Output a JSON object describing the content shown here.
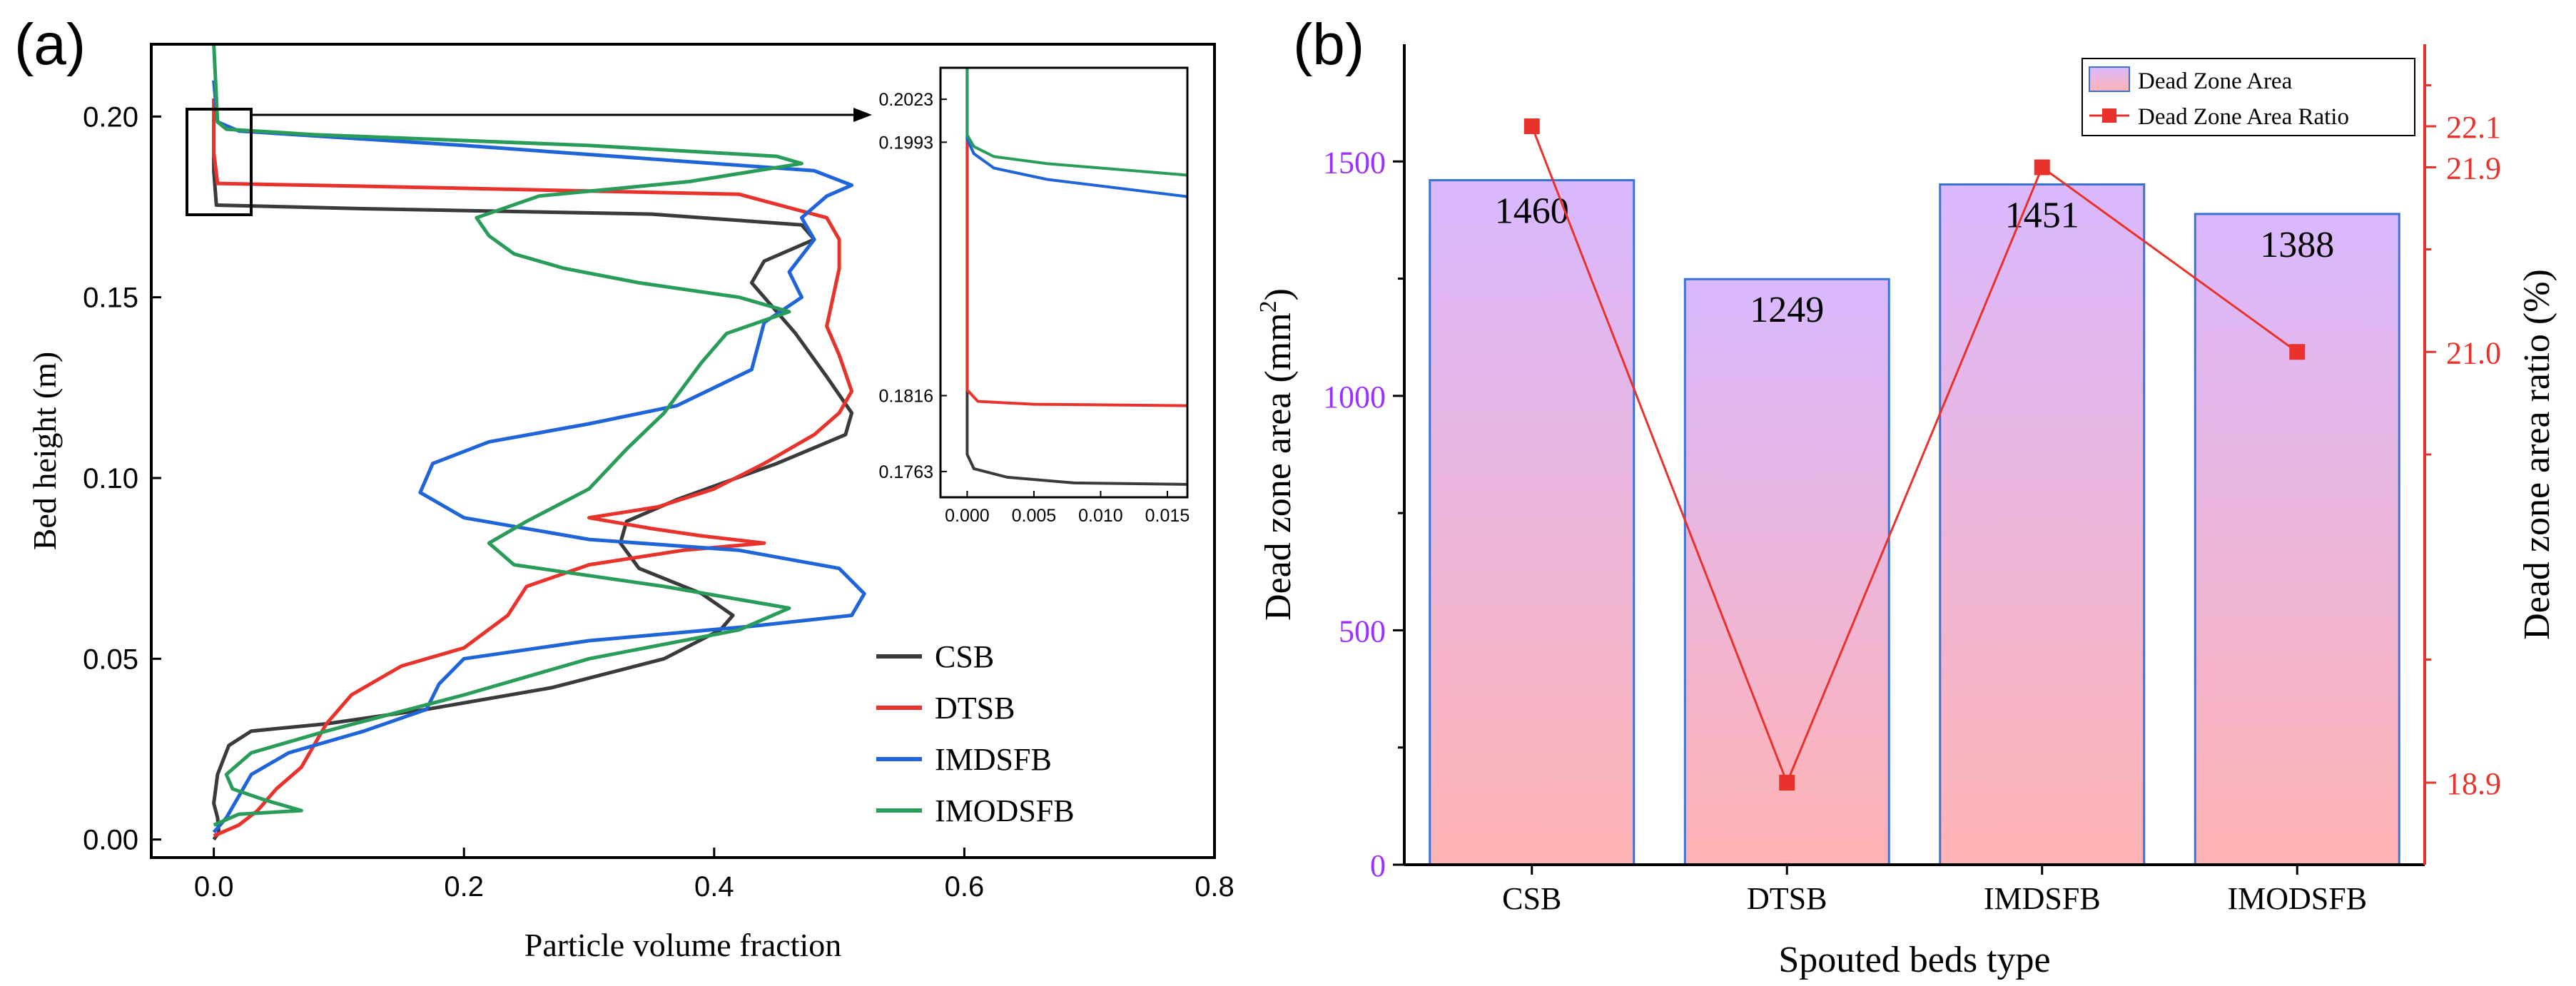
{
  "chart_data": [
    {
      "panel": "(a)",
      "type": "line",
      "xlabel": "Particle volume fraction",
      "ylabel": "Bed height (m)",
      "xlim": [
        -0.05,
        0.8
      ],
      "ylim": [
        -0.005,
        0.22
      ],
      "xticks": [
        "0.0",
        "0.2",
        "0.4",
        "0.6",
        "0.8"
      ],
      "yticks": [
        "0.00",
        "0.05",
        "0.10",
        "0.15",
        "0.20"
      ],
      "legend_position": "lower-right",
      "series": [
        {
          "name": "CSB",
          "color": "#3a3a3a",
          "points": [
            [
              0.0,
              0.0
            ],
            [
              0.004,
              0.002
            ],
            [
              0.003,
              0.006
            ],
            [
              0.0,
              0.01
            ],
            [
              0.003,
              0.018
            ],
            [
              0.012,
              0.026
            ],
            [
              0.03,
              0.03
            ],
            [
              0.09,
              0.032
            ],
            [
              0.17,
              0.036
            ],
            [
              0.27,
              0.042
            ],
            [
              0.36,
              0.05
            ],
            [
              0.405,
              0.058
            ],
            [
              0.415,
              0.062
            ],
            [
              0.39,
              0.068
            ],
            [
              0.34,
              0.075
            ],
            [
              0.325,
              0.082
            ],
            [
              0.33,
              0.088
            ],
            [
              0.37,
              0.094
            ],
            [
              0.45,
              0.104
            ],
            [
              0.505,
              0.112
            ],
            [
              0.51,
              0.118
            ],
            [
              0.49,
              0.128
            ],
            [
              0.465,
              0.14
            ],
            [
              0.43,
              0.154
            ],
            [
              0.44,
              0.16
            ],
            [
              0.48,
              0.166
            ],
            [
              0.47,
              0.17
            ],
            [
              0.35,
              0.173
            ],
            [
              0.12,
              0.1745
            ],
            [
              0.002,
              0.1755
            ],
            [
              0.0,
              0.185
            ],
            [
              0.0,
              0.199
            ]
          ]
        },
        {
          "name": "DTSB",
          "color": "#e8322b",
          "points": [
            [
              0.0,
              0.001
            ],
            [
              0.02,
              0.004
            ],
            [
              0.035,
              0.008
            ],
            [
              0.05,
              0.014
            ],
            [
              0.07,
              0.02
            ],
            [
              0.08,
              0.026
            ],
            [
              0.09,
              0.032
            ],
            [
              0.11,
              0.04
            ],
            [
              0.15,
              0.048
            ],
            [
              0.2,
              0.053
            ],
            [
              0.235,
              0.062
            ],
            [
              0.25,
              0.07
            ],
            [
              0.3,
              0.076
            ],
            [
              0.375,
              0.08
            ],
            [
              0.44,
              0.082
            ],
            [
              0.39,
              0.084
            ],
            [
              0.35,
              0.086
            ],
            [
              0.3,
              0.089
            ],
            [
              0.355,
              0.092
            ],
            [
              0.4,
              0.097
            ],
            [
              0.44,
              0.104
            ],
            [
              0.48,
              0.112
            ],
            [
              0.5,
              0.118
            ],
            [
              0.51,
              0.124
            ],
            [
              0.5,
              0.134
            ],
            [
              0.49,
              0.142
            ],
            [
              0.495,
              0.15
            ],
            [
              0.5,
              0.158
            ],
            [
              0.5,
              0.166
            ],
            [
              0.49,
              0.172
            ],
            [
              0.42,
              0.1785
            ],
            [
              0.15,
              0.1805
            ],
            [
              0.003,
              0.1815
            ],
            [
              0.0,
              0.19
            ],
            [
              0.0,
              0.205
            ]
          ]
        },
        {
          "name": "IMDSFB",
          "color": "#1f64d8",
          "points": [
            [
              0.0,
              0.002
            ],
            [
              0.01,
              0.006
            ],
            [
              0.02,
              0.012
            ],
            [
              0.03,
              0.018
            ],
            [
              0.06,
              0.024
            ],
            [
              0.12,
              0.03
            ],
            [
              0.17,
              0.036
            ],
            [
              0.18,
              0.043
            ],
            [
              0.2,
              0.05
            ],
            [
              0.3,
              0.055
            ],
            [
              0.43,
              0.059
            ],
            [
              0.51,
              0.062
            ],
            [
              0.52,
              0.068
            ],
            [
              0.5,
              0.075
            ],
            [
              0.42,
              0.08
            ],
            [
              0.3,
              0.083
            ],
            [
              0.2,
              0.089
            ],
            [
              0.165,
              0.096
            ],
            [
              0.175,
              0.104
            ],
            [
              0.22,
              0.11
            ],
            [
              0.3,
              0.115
            ],
            [
              0.37,
              0.12
            ],
            [
              0.43,
              0.13
            ],
            [
              0.44,
              0.143
            ],
            [
              0.47,
              0.15
            ],
            [
              0.46,
              0.157
            ],
            [
              0.48,
              0.166
            ],
            [
              0.47,
              0.172
            ],
            [
              0.49,
              0.178
            ],
            [
              0.51,
              0.181
            ],
            [
              0.48,
              0.185
            ],
            [
              0.2,
              0.192
            ],
            [
              0.02,
              0.196
            ],
            [
              0.003,
              0.1985
            ],
            [
              0.0,
              0.21
            ]
          ]
        },
        {
          "name": "IMODSFB",
          "color": "#2a9c5a",
          "points": [
            [
              0.0,
              0.004
            ],
            [
              0.02,
              0.007
            ],
            [
              0.07,
              0.008
            ],
            [
              0.04,
              0.011
            ],
            [
              0.015,
              0.014
            ],
            [
              0.01,
              0.018
            ],
            [
              0.03,
              0.024
            ],
            [
              0.09,
              0.03
            ],
            [
              0.2,
              0.04
            ],
            [
              0.3,
              0.05
            ],
            [
              0.42,
              0.058
            ],
            [
              0.46,
              0.064
            ],
            [
              0.36,
              0.07
            ],
            [
              0.24,
              0.076
            ],
            [
              0.22,
              0.082
            ],
            [
              0.25,
              0.088
            ],
            [
              0.3,
              0.097
            ],
            [
              0.33,
              0.108
            ],
            [
              0.36,
              0.118
            ],
            [
              0.39,
              0.132
            ],
            [
              0.41,
              0.14
            ],
            [
              0.46,
              0.146
            ],
            [
              0.42,
              0.15
            ],
            [
              0.34,
              0.154
            ],
            [
              0.28,
              0.158
            ],
            [
              0.24,
              0.162
            ],
            [
              0.22,
              0.167
            ],
            [
              0.21,
              0.172
            ],
            [
              0.26,
              0.178
            ],
            [
              0.38,
              0.182
            ],
            [
              0.47,
              0.187
            ],
            [
              0.45,
              0.189
            ],
            [
              0.3,
              0.192
            ],
            [
              0.08,
              0.195
            ],
            [
              0.01,
              0.1965
            ],
            [
              0.003,
              0.1985
            ],
            [
              0.0,
              0.22
            ]
          ]
        }
      ],
      "inset": {
        "xlim": [
          -0.002,
          0.0165
        ],
        "ylim": [
          0.1745,
          0.2045
        ],
        "xticks": [
          "0.000",
          "0.005",
          "0.010",
          "0.015"
        ],
        "yticks": [
          "0.2023",
          "0.1993",
          "0.1816",
          "0.1763"
        ],
        "series": [
          {
            "name": "CSB",
            "points": [
              [
                0.0,
                0.2045
              ],
              [
                0.0,
                0.1775
              ],
              [
                0.0005,
                0.1765
              ],
              [
                0.003,
                0.1759
              ],
              [
                0.008,
                0.1755
              ],
              [
                0.0165,
                0.1754
              ]
            ]
          },
          {
            "name": "DTSB",
            "points": [
              [
                0.0,
                0.1995
              ],
              [
                0.0,
                0.182
              ],
              [
                0.0008,
                0.1812
              ],
              [
                0.005,
                0.181
              ],
              [
                0.0165,
                0.1809
              ]
            ]
          },
          {
            "name": "IMDSFB",
            "points": [
              [
                0.0,
                0.2045
              ],
              [
                0.0,
                0.1995
              ],
              [
                0.0005,
                0.1985
              ],
              [
                0.002,
                0.1975
              ],
              [
                0.006,
                0.1967
              ],
              [
                0.0165,
                0.1955
              ]
            ]
          },
          {
            "name": "IMODSFB",
            "points": [
              [
                0.0,
                0.2045
              ],
              [
                0.0,
                0.1998
              ],
              [
                0.0005,
                0.199
              ],
              [
                0.002,
                0.1983
              ],
              [
                0.006,
                0.1978
              ],
              [
                0.0165,
                0.197
              ]
            ]
          }
        ]
      }
    },
    {
      "panel": "(b)",
      "type": "bar",
      "xlabel": "Spouted beds type",
      "ylabel_left": "Dead zone area (mm",
      "ylabel_left_sup": "2",
      "ylabel_left_end": ")",
      "ylabel_right": "Dead zone area ratio (%)",
      "categories": [
        "CSB",
        "DTSB",
        "IMDSFB",
        "IMODSFB"
      ],
      "ylim_left": [
        0,
        1750
      ],
      "yticks_left": [
        "0",
        "500",
        "1000",
        "1500"
      ],
      "ylim_right": [
        18.5,
        22.5
      ],
      "yticks_right": [
        "18.9",
        "21.0",
        "21.9",
        "22.1"
      ],
      "legend_position": "top-right",
      "series": [
        {
          "name": "Dead Zone Area",
          "type": "bar",
          "values": [
            1460,
            1249,
            1451,
            1388
          ],
          "labels": [
            "1460",
            "1249",
            "1451",
            "1388"
          ]
        },
        {
          "name": "Dead Zone Area Ratio",
          "type": "line",
          "values": [
            22.1,
            18.9,
            21.9,
            21.0
          ]
        }
      ],
      "colors": {
        "bar_top": "#d9b8ff",
        "bar_bottom": "#ffb3b3",
        "bar_edge": "#3a72d8",
        "line": "#e8322b",
        "left_axis": "#9b30ff",
        "right_axis": "#e8322b"
      }
    }
  ]
}
